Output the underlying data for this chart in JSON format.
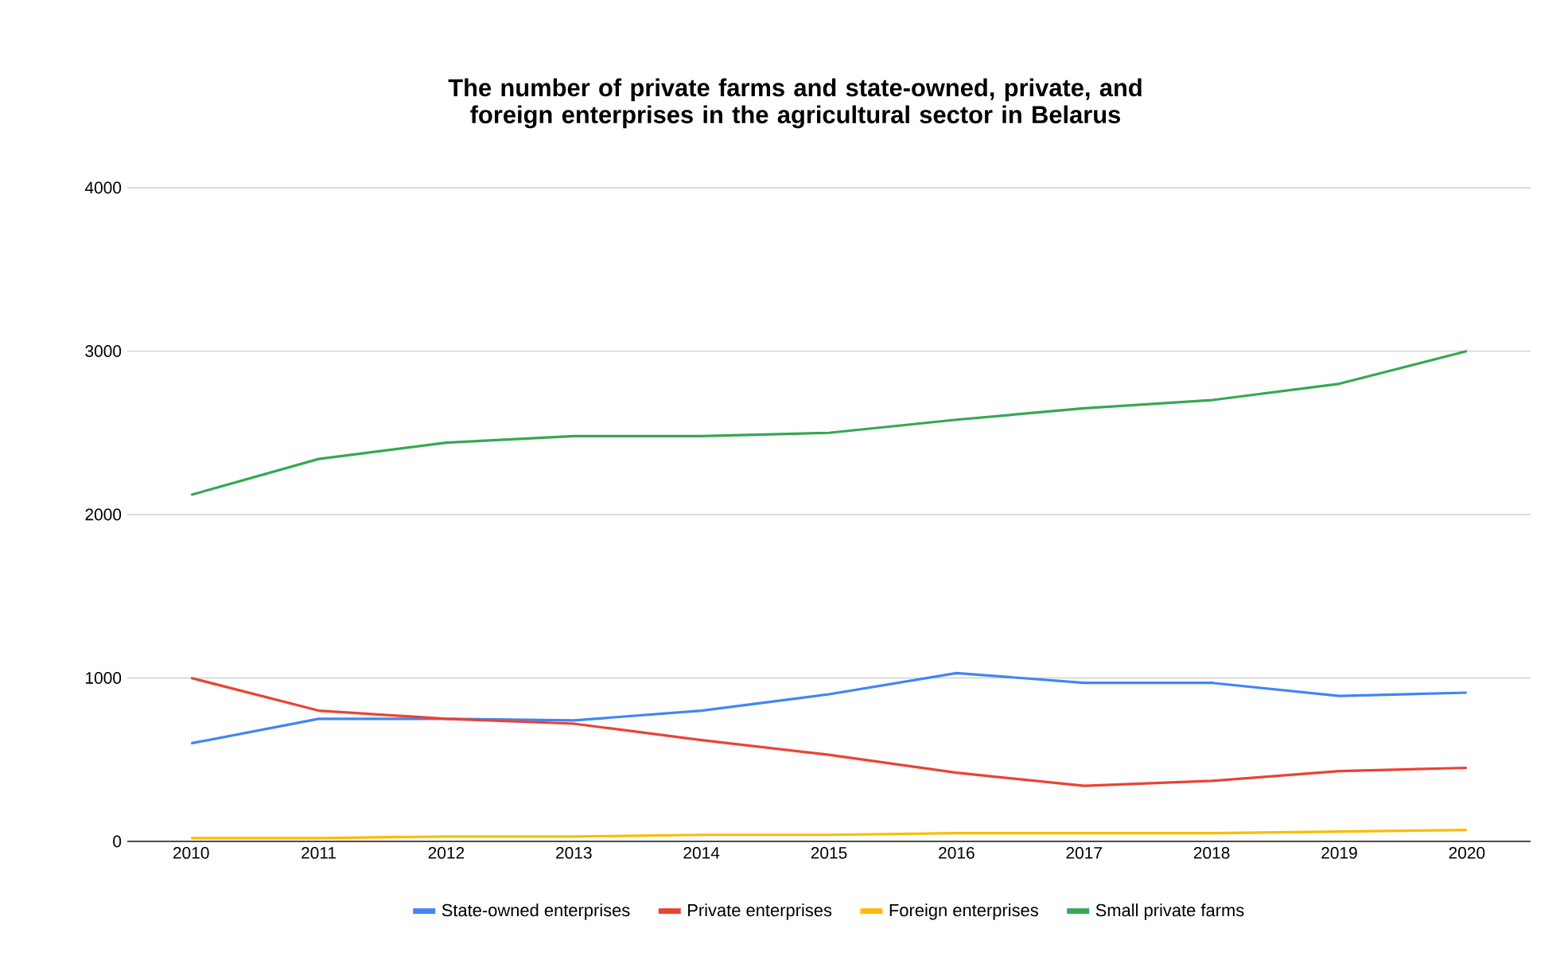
{
  "chart_data": {
    "type": "line",
    "title": "The number of private farms and state-owned, private, and foreign enterprises in the agricultural sector in Belarus",
    "categories": [
      "2010",
      "2011",
      "2012",
      "2013",
      "2014",
      "2015",
      "2016",
      "2017",
      "2018",
      "2019",
      "2020"
    ],
    "series": [
      {
        "name": "State-owned enterprises",
        "color": "#4285f4",
        "values": [
          600,
          750,
          750,
          740,
          800,
          900,
          1030,
          970,
          970,
          890,
          910
        ]
      },
      {
        "name": "Private enterprises",
        "color": "#ea4335",
        "values": [
          1000,
          800,
          750,
          720,
          620,
          530,
          420,
          340,
          370,
          430,
          450
        ]
      },
      {
        "name": "Foreign enterprises",
        "color": "#fbbc04",
        "values": [
          20,
          20,
          30,
          30,
          40,
          40,
          50,
          50,
          50,
          60,
          70
        ]
      },
      {
        "name": "Small private farms",
        "color": "#34a853",
        "values": [
          2120,
          2340,
          2440,
          2480,
          2480,
          2500,
          2580,
          2650,
          2700,
          2800,
          3000
        ]
      }
    ],
    "ylim": [
      0,
      4000
    ],
    "yticks": [
      0,
      1000,
      2000,
      3000,
      4000
    ],
    "grid": "y",
    "legend": "bottom",
    "marker": "none",
    "line_style": "solid"
  }
}
